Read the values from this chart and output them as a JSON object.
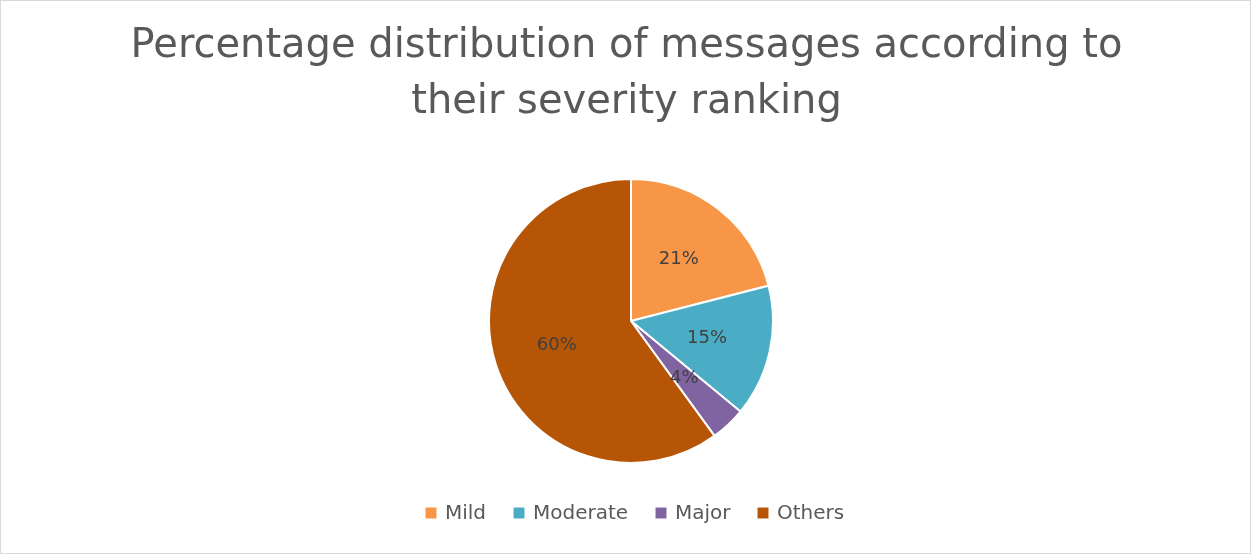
{
  "chart_data": {
    "type": "pie",
    "title": "Percentage distribution of messages according to their severity ranking",
    "categories": [
      "Mild",
      "Moderate",
      "Major",
      "Others"
    ],
    "values": [
      21,
      15,
      4,
      60
    ],
    "colors": [
      "#f79646",
      "#4bacc6",
      "#8064a2",
      "#b75506"
    ],
    "value_labels": [
      "21%",
      "15%",
      "4%",
      "60%"
    ],
    "legend": "bottom"
  }
}
